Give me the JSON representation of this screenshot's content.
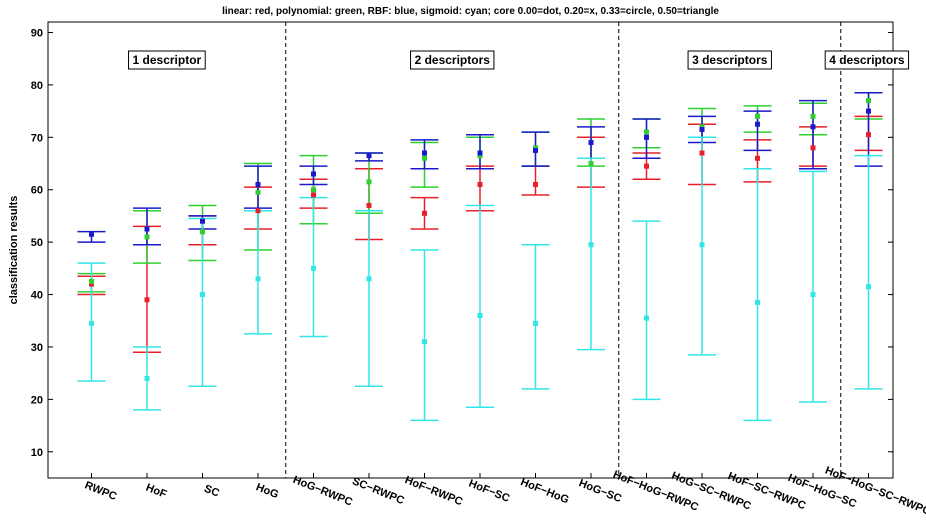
{
  "chart_data": {
    "type": "scatter",
    "title": "linear: red, polynomial: green, RBF: blue, sigmoid: cyan; core 0.00=dot, 0.20=x, 0.33=circle, 0.50=triangle",
    "xlabel": "",
    "ylabel": "classification results",
    "ylim": [
      5,
      92
    ],
    "yticks": [
      10,
      20,
      30,
      40,
      50,
      60,
      70,
      80,
      90
    ],
    "grid": false,
    "categories": [
      "RWPC",
      "HoF",
      "SC",
      "HoG",
      "HoG−RWPC",
      "SC−RWPC",
      "HoF−RWPC",
      "HoF−SC",
      "HoF−HoG",
      "HoG−SC",
      "HoF−HoG−RWPC",
      "HoG−SC−RWPC",
      "HoF−SC−RWPC",
      "HoF−HoG−SC",
      "HoF−HoG−SC−RWPC"
    ],
    "groups": [
      {
        "label": "1 descriptor",
        "start": 0,
        "end": 3
      },
      {
        "label": "2 descriptors",
        "start": 4,
        "end": 9
      },
      {
        "label": "3 descriptors",
        "start": 10,
        "end": 13
      },
      {
        "label": "4 descriptors",
        "start": 14,
        "end": 14
      }
    ],
    "series": [
      {
        "name": "linear",
        "color": "#e8202a",
        "values": [
          42,
          39,
          52,
          56,
          59,
          57,
          55.5,
          61,
          61,
          65,
          64.5,
          67,
          66,
          68,
          70.5
        ],
        "lower": [
          40,
          29,
          49.5,
          52.5,
          56.5,
          50.5,
          52.5,
          56,
          59,
          60.5,
          62,
          61,
          61.5,
          64.5,
          67.5
        ],
        "upper": [
          43.5,
          53,
          55,
          60.5,
          62,
          64,
          58.5,
          64.5,
          64.5,
          70,
          67,
          72.5,
          69.5,
          72,
          74
        ]
      },
      {
        "name": "polynomial",
        "color": "#2fd02f",
        "values": [
          42.5,
          51,
          52,
          59.5,
          60,
          61.5,
          66,
          66.5,
          68,
          65,
          71,
          72,
          74,
          74,
          77
        ],
        "lower": [
          40.5,
          46,
          46.5,
          48.5,
          53.5,
          55.5,
          60.5,
          64,
          64.5,
          64.5,
          68,
          70,
          71,
          70.5,
          73.5
        ],
        "upper": [
          44,
          56,
          57,
          65,
          66.5,
          67,
          69,
          70,
          71,
          73.5,
          73.5,
          75.5,
          76,
          76.5,
          78.5
        ]
      },
      {
        "name": "RBF",
        "color": "#1a1acc",
        "values": [
          51.5,
          52.5,
          54,
          61,
          63,
          66.5,
          67,
          67,
          67.5,
          69,
          70,
          71.5,
          72.5,
          72,
          75
        ],
        "lower": [
          50,
          49.5,
          52.5,
          56.5,
          61,
          65.5,
          64,
          64,
          64.5,
          66,
          66,
          69,
          67.5,
          64,
          64.5
        ],
        "upper": [
          52,
          56.5,
          55,
          64.5,
          64.5,
          67,
          69.5,
          70.5,
          71,
          72,
          73.5,
          74,
          75,
          77,
          78.5
        ]
      },
      {
        "name": "sigmoid",
        "color": "#33e6e6",
        "values": [
          34.5,
          24,
          40,
          43,
          45,
          43,
          31,
          36,
          34.5,
          49.5,
          35.5,
          49.5,
          38.5,
          40,
          41.5
        ],
        "lower": [
          23.5,
          18,
          22.5,
          32.5,
          32,
          22.5,
          16,
          18.5,
          22,
          29.5,
          20,
          28.5,
          16,
          19.5,
          22
        ],
        "upper": [
          46,
          30,
          54.5,
          56,
          58.5,
          56,
          48.5,
          57,
          49.5,
          66,
          54,
          70,
          64,
          63.5,
          66.5
        ]
      }
    ]
  }
}
